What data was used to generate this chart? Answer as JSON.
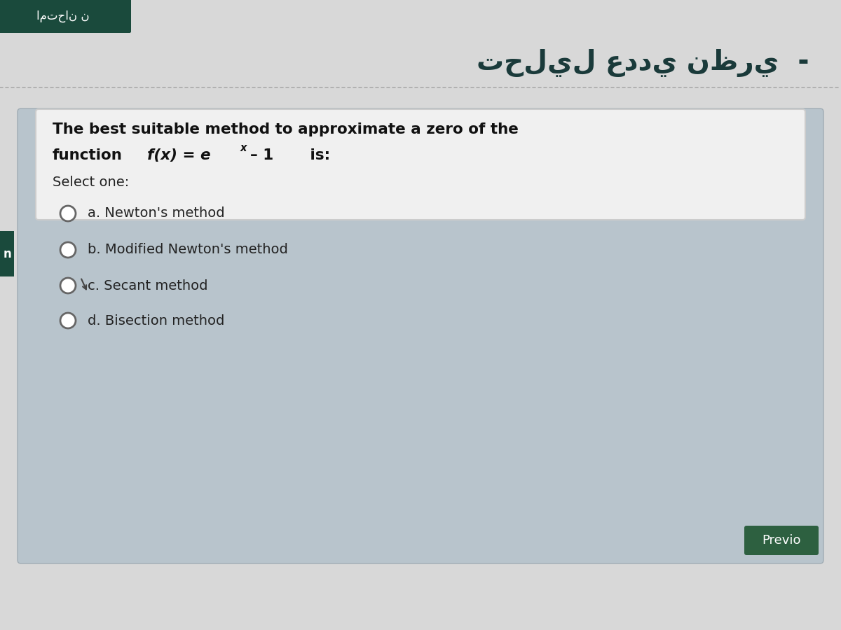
{
  "page_bg": "#d8d8d8",
  "header_bg": "#1a4a3c",
  "header_text_color": "#ffffff",
  "title_color": "#1a3a3a",
  "card_bg": "#b8c4cc",
  "card_border": "#a0acb4",
  "qbox_bg": "#f0f0f0",
  "qbox_border": "#cccccc",
  "question_line1": "The best suitable method to approximate a zero of the",
  "question_line2_func": "function",
  "question_formula": "f(x) = e",
  "question_superx": "x",
  "question_minus1": "– 1",
  "question_is": "is:",
  "select_one": "Select one:",
  "options": [
    "a. Newton's method",
    "b. Modified Newton's method",
    "c. Secant method",
    "d. Bisection method"
  ],
  "option_color": "#222222",
  "radio_edge": "#666666",
  "radio_face": "#ffffff",
  "side_bar_bg": "#1a4a3c",
  "side_bar_text": "n",
  "side_bar_text_color": "#ffffff",
  "prev_btn_bg": "#2d6040",
  "prev_btn_text": "Previo",
  "prev_btn_text_color": "#ffffff",
  "dotted_color": "#aaaaaa",
  "arabic_title": "تحليل عددي نظري  -",
  "arabic_header": "امتحان ن"
}
